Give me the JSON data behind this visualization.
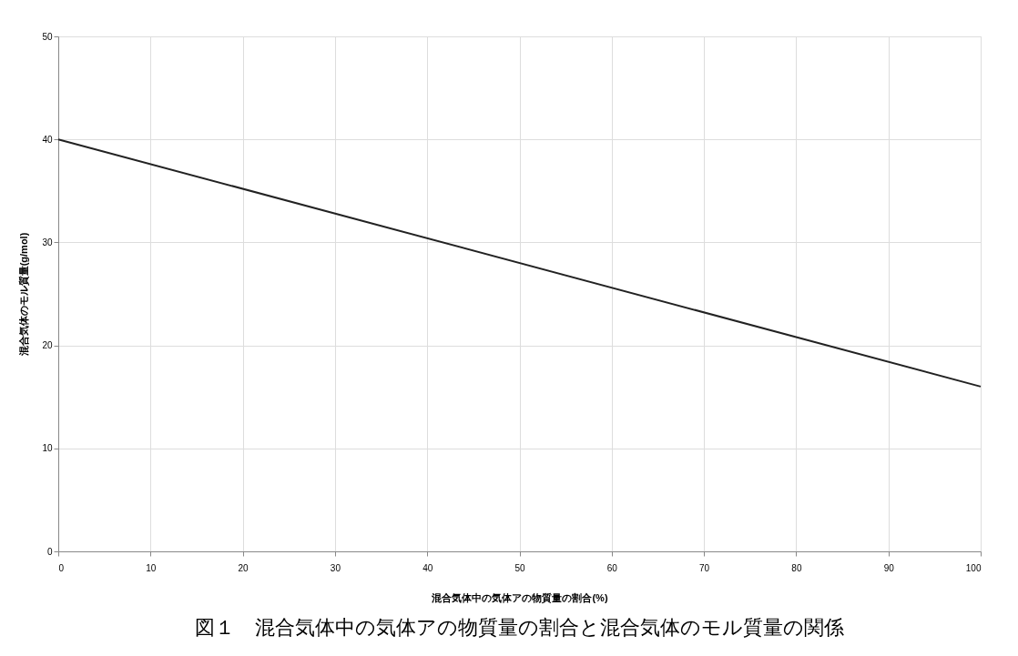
{
  "chart_data": {
    "type": "line",
    "title": "図１　混合気体中の気体アの物質量の割合と混合気体のモル質量の関係",
    "xlabel": "混合気体中の気体アの物質量の割合(%)",
    "ylabel": "混合気体のモル質量(g/mol)",
    "x": [
      0,
      100
    ],
    "series": [
      {
        "color": "#222222",
        "values": [
          40,
          16
        ]
      }
    ],
    "xlim": [
      0,
      100
    ],
    "xticks": [
      0,
      10,
      20,
      30,
      40,
      50,
      60,
      70,
      80,
      90,
      100
    ],
    "ylim": [
      0,
      50
    ],
    "yticks": [
      0,
      10,
      20,
      30,
      40,
      50
    ],
    "grid": true,
    "legend": false,
    "marker": "none",
    "line_style": "solid"
  }
}
